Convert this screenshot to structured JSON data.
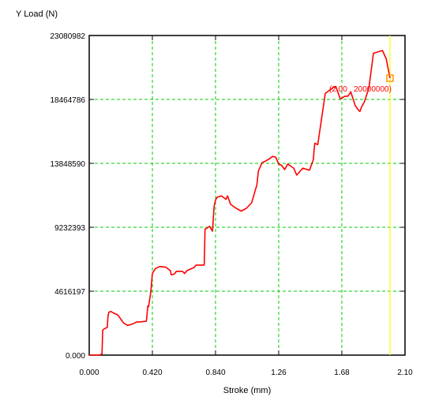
{
  "chart_data": {
    "type": "line",
    "xlabel": "Stroke (mm)",
    "ylabel": "Y Load (N)",
    "xlim": [
      0,
      2.1
    ],
    "ylim": [
      0,
      23080982
    ],
    "x_ticks": [
      0,
      0.42,
      0.84,
      1.26,
      1.68,
      2.1
    ],
    "x_tick_labels": [
      "0.000",
      "0.420",
      "0.840",
      "1.26",
      "1.68",
      "2.10"
    ],
    "y_ticks": [
      0,
      4616197,
      9232393,
      13848590,
      18464786,
      23080982
    ],
    "y_tick_labels": [
      "0.000",
      "4616197",
      "9232393",
      "13848590",
      "18464786",
      "23080982"
    ],
    "grid": true,
    "grid_color": "#00cc00",
    "series_color": "#ff0000",
    "cursor_color": "#ffff00",
    "marker_color": "#ff9900",
    "cursor_x": 2.0,
    "marker": {
      "x": 2.0,
      "y": 20000000,
      "label": "(2.00 , 20000000)"
    },
    "series": [
      {
        "x": [
          0.0,
          0.07,
          0.085,
          0.09,
          0.1,
          0.12,
          0.125,
          0.13,
          0.145,
          0.16,
          0.19,
          0.23,
          0.255,
          0.275,
          0.3,
          0.315,
          0.335,
          0.38,
          0.39,
          0.395,
          0.41,
          0.42,
          0.44,
          0.47,
          0.51,
          0.54,
          0.545,
          0.565,
          0.58,
          0.62,
          0.635,
          0.65,
          0.7,
          0.71,
          0.74,
          0.765,
          0.77,
          0.78,
          0.8,
          0.82,
          0.83,
          0.84,
          0.85,
          0.88,
          0.91,
          0.92,
          0.94,
          0.97,
          1.01,
          1.045,
          1.08,
          1.115,
          1.125,
          1.15,
          1.17,
          1.195,
          1.22,
          1.24,
          1.26,
          1.28,
          1.3,
          1.32,
          1.36,
          1.38,
          1.42,
          1.465,
          1.49,
          1.5,
          1.52,
          1.57,
          1.62,
          1.64,
          1.67,
          1.7,
          1.72,
          1.74,
          1.77,
          1.79,
          1.8,
          1.81,
          1.83,
          1.86,
          1.89,
          1.95,
          1.975,
          2.0
        ],
        "y": [
          0,
          0,
          100000,
          1800000,
          1900000,
          2000000,
          2800000,
          3100000,
          3150000,
          3050000,
          2900000,
          2300000,
          2150000,
          2200000,
          2300000,
          2400000,
          2400000,
          2450000,
          3550000,
          3500000,
          4600000,
          5900000,
          6250000,
          6400000,
          6350000,
          6100000,
          5800000,
          5850000,
          6050000,
          6050000,
          5900000,
          6100000,
          6350000,
          6500000,
          6500000,
          6500000,
          9100000,
          9150000,
          9300000,
          8950000,
          10700000,
          11200000,
          11400000,
          11500000,
          11250000,
          11500000,
          10900000,
          10650000,
          10400000,
          10600000,
          11000000,
          12300000,
          13300000,
          13900000,
          14000000,
          14150000,
          14350000,
          14300000,
          13800000,
          13700000,
          13400000,
          13800000,
          13500000,
          13000000,
          13500000,
          13350000,
          14100000,
          15300000,
          15200000,
          18900000,
          19300000,
          19400000,
          18500000,
          18700000,
          18700000,
          19000000,
          18000000,
          17700000,
          17600000,
          17900000,
          18300000,
          19300000,
          21800000,
          22000000,
          21400000,
          20000000
        ]
      }
    ]
  }
}
